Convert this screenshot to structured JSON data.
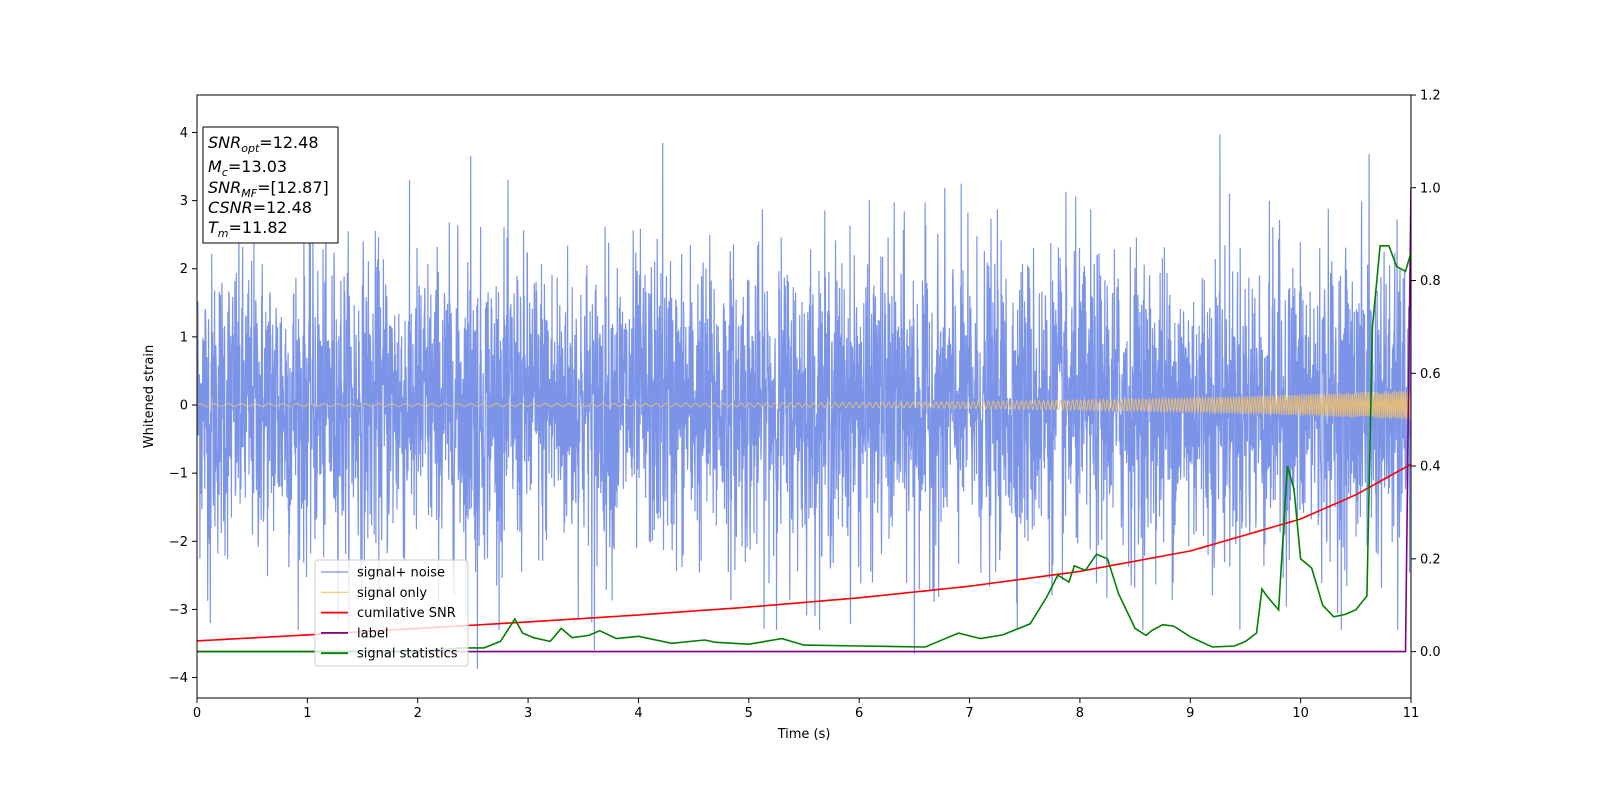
{
  "chart_data": {
    "type": "line",
    "xlabel": "Time (s)",
    "ylabel": "Whitened strain",
    "xlim": [
      0,
      11
    ],
    "ylim": [
      -4.3,
      4.55
    ],
    "y2lim": [
      -0.1,
      1.2
    ],
    "x_ticks": [
      "0",
      "1",
      "2",
      "3",
      "4",
      "5",
      "6",
      "7",
      "8",
      "9",
      "10",
      "11"
    ],
    "y_ticks": [
      "−4",
      "−3",
      "−2",
      "−1",
      "0",
      "1",
      "2",
      "3",
      "4"
    ],
    "y2_ticks": [
      "0.0",
      "0.2",
      "0.4",
      "0.6",
      "0.8",
      "1.0",
      "1.2"
    ],
    "grid": false,
    "legend_position": "lower-left",
    "colors": {
      "signal_noise": "#7b94e8",
      "signal_only": "#f5c26b",
      "cumulative_snr": "#ff0000",
      "label": "#800080",
      "signal_statistics": "#008000"
    },
    "annotation_lines": [
      "=12.48",
      "=13.03",
      "=[12.87]",
      "=12.48",
      "=11.82"
    ],
    "annotation_symbols": [
      {
        "main": "SNR",
        "sub": "opt"
      },
      {
        "main": "M",
        "sub": "c"
      },
      {
        "main": "SNR",
        "sub": "MF"
      },
      {
        "main": "CSNR",
        "sub": ""
      },
      {
        "main": "T",
        "sub": "m"
      }
    ],
    "series": [
      {
        "name": "signal+ noise",
        "axis": "left",
        "style": "noise",
        "amplitude_typical": 2.3,
        "extremes": [
          {
            "x": 2.48,
            "y": 3.65
          },
          {
            "x": 4.22,
            "y": 3.85
          },
          {
            "x": 9.27,
            "y": 3.97
          },
          {
            "x": 10.62,
            "y": 3.68
          },
          {
            "x": 2.54,
            "y": -3.87
          },
          {
            "x": 3.6,
            "y": -3.6
          },
          {
            "x": 6.5,
            "y": -3.65
          },
          {
            "x": 0.12,
            "y": -3.2
          },
          {
            "x": 10.88,
            "y": -3.3
          }
        ]
      },
      {
        "name": "signal only",
        "axis": "left",
        "style": "chirp",
        "amplitude_start": 0.02,
        "amplitude_end": 0.22,
        "freq_start_hz": 8,
        "freq_end_hz": 60
      },
      {
        "name": "cumilative SNR",
        "axis": "right",
        "x": [
          0,
          1,
          2,
          3,
          4,
          5,
          6,
          7,
          8,
          9,
          10,
          10.5,
          11
        ],
        "y": [
          0.023,
          0.036,
          0.05,
          0.064,
          0.079,
          0.096,
          0.116,
          0.141,
          0.173,
          0.217,
          0.286,
          0.338,
          0.404
        ]
      },
      {
        "name": "label",
        "axis": "right",
        "x": [
          0,
          10.95,
          11
        ],
        "y": [
          0.0,
          0.0,
          1.0
        ]
      },
      {
        "name": "signal statistics",
        "axis": "right",
        "x": [
          0,
          1,
          2,
          2.4,
          2.6,
          2.75,
          2.88,
          2.95,
          3.05,
          3.2,
          3.3,
          3.4,
          3.55,
          3.65,
          3.8,
          4.0,
          4.3,
          4.6,
          4.7,
          5.0,
          5.3,
          5.5,
          6.0,
          6.6,
          6.8,
          6.9,
          7.1,
          7.3,
          7.55,
          7.7,
          7.8,
          7.9,
          7.95,
          8.05,
          8.15,
          8.25,
          8.35,
          8.5,
          8.6,
          8.65,
          8.75,
          8.85,
          9.0,
          9.2,
          9.4,
          9.5,
          9.6,
          9.65,
          9.7,
          9.8,
          9.88,
          9.94,
          10.0,
          10.1,
          10.2,
          10.3,
          10.4,
          10.5,
          10.6,
          10.65,
          10.72,
          10.8,
          10.87,
          10.95,
          11.0
        ],
        "y": [
          0.0,
          0.0,
          0.0,
          0.008,
          0.008,
          0.022,
          0.07,
          0.04,
          0.03,
          0.022,
          0.05,
          0.03,
          0.035,
          0.045,
          0.028,
          0.033,
          0.018,
          0.025,
          0.02,
          0.016,
          0.028,
          0.014,
          0.012,
          0.01,
          0.03,
          0.04,
          0.028,
          0.036,
          0.06,
          0.118,
          0.165,
          0.15,
          0.185,
          0.175,
          0.21,
          0.2,
          0.125,
          0.05,
          0.035,
          0.045,
          0.058,
          0.055,
          0.032,
          0.01,
          0.012,
          0.022,
          0.04,
          0.135,
          0.118,
          0.09,
          0.4,
          0.35,
          0.2,
          0.18,
          0.1,
          0.075,
          0.08,
          0.09,
          0.12,
          0.7,
          0.875,
          0.875,
          0.83,
          0.82,
          0.86
        ]
      }
    ]
  }
}
